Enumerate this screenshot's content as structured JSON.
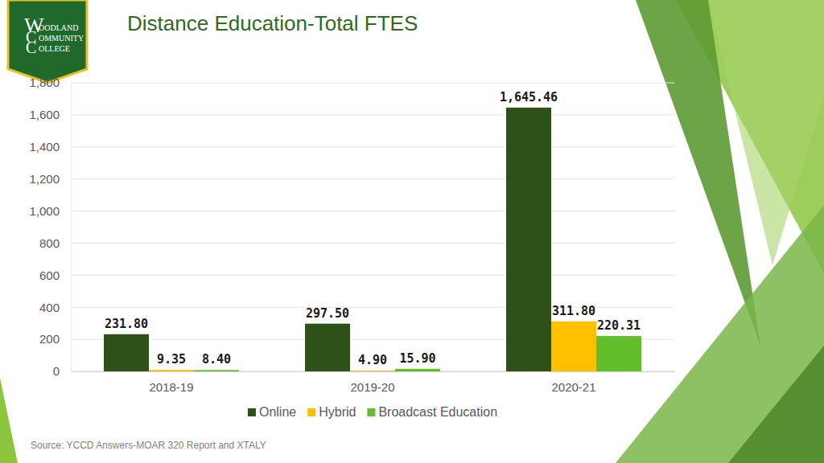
{
  "logo": {
    "initials": [
      "W",
      "C",
      "C"
    ],
    "lines": [
      "OODLAND",
      "OMMUNITY",
      "OLLEGE"
    ]
  },
  "chart_data": {
    "type": "bar",
    "title": "Distance Education-Total FTES",
    "source": "Source: YCCD Answers-MOAR 320 Report and XTALY",
    "categories": [
      "2018-19",
      "2019-20",
      "2020-21"
    ],
    "series": [
      {
        "name": "Online",
        "color": "#2d5116",
        "values": [
          231.8,
          297.5,
          1645.46
        ],
        "value_labels": [
          "231.80",
          "297.50",
          "1,645.46"
        ]
      },
      {
        "name": "Hybrid",
        "color": "#ffc000",
        "values": [
          9.35,
          4.9,
          311.8
        ],
        "value_labels": [
          "9.35",
          "4.90",
          "311.80"
        ]
      },
      {
        "name": "Broadcast Education",
        "color": "#63be2c",
        "values": [
          8.4,
          15.9,
          220.31
        ],
        "value_labels": [
          "8.40",
          "15.90",
          "220.31"
        ]
      }
    ],
    "ylim": [
      0,
      1800
    ],
    "yticks": [
      0,
      200,
      400,
      600,
      800,
      {
        "value": 1000,
        "label": "1,000"
      },
      {
        "value": 1200,
        "label": "1,200"
      },
      {
        "value": 1400,
        "label": "1,400"
      },
      {
        "value": 1600,
        "label": "1,600"
      },
      {
        "value": 1800,
        "label": "1,800"
      }
    ],
    "grid": true,
    "legend": "bottom",
    "data_labels": true
  }
}
